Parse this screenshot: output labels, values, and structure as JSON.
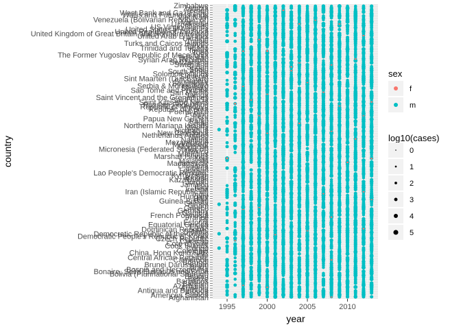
{
  "chart_data": {
    "type": "scatter",
    "title": "",
    "xlabel": "year",
    "ylabel": "country",
    "x": [
      1995,
      1996,
      1997,
      1998,
      1999,
      2000,
      2001,
      2002,
      2003,
      2004,
      2005,
      2006,
      2007,
      2008,
      2009,
      2010,
      2011,
      2012,
      2013
    ],
    "x_ticks": [
      1995,
      2000,
      2005,
      2010
    ],
    "xlim": [
      1993.2,
      2013.8
    ],
    "grid": true,
    "country_labels": [
      "Afghanistan",
      "American Samoa",
      "Angola",
      "Antigua and Barbuda",
      "Armenia",
      "Azerbaijan",
      "Bahrain",
      "Barbados",
      "Belize",
      "Bhutan",
      "Bolivia (Plurinational State of)",
      "Bonaire, Saint Eustatius and Saba",
      "Bosnia and Herzegovina",
      "Brazil",
      "Brunei Darussalam",
      "Burundi",
      "Cameroon",
      "Central African Republic",
      "Chile",
      "China, Hong Kong SAR",
      "Colombia",
      "Congo",
      "Cook Islands",
      "Cote d'Ivoire",
      "Curacao",
      "Czech Republic",
      "Democratic People's Republic of Korea",
      "Democratic Republic of the Congo",
      "Djibouti",
      "Dominican Republic",
      "Egypt",
      "Equatorial Guinea",
      "Estonia",
      "Fiji",
      "France",
      "French Polynesia",
      "Gambia",
      "Germany",
      "Greece",
      "Guam",
      "Guinea",
      "Guinea-Bissau",
      "Haiti",
      "Hungary",
      "India",
      "Iran (Islamic Republic of)",
      "Ireland",
      "Italy",
      "Jamaica",
      "Jordan",
      "Kazakhstan",
      "Kiribati",
      "Kyrgyzstan",
      "Lao People's Democratic Republic",
      "Lebanon",
      "Liberia",
      "Lithuania",
      "Madagascar",
      "Malaysia",
      "Mali",
      "Marshall Islands",
      "Mauritius",
      "Mexico",
      "Micronesia (Federated States of)",
      "Mongolia",
      "Montserrat",
      "Mozambique",
      "Namibia",
      "Nepal",
      "Netherlands Antilles",
      "New Caledonia",
      "Nicaragua",
      "Nigeria",
      "Northern Mariana Islands",
      "Oman",
      "Palau",
      "Papua New Guinea",
      "Peru",
      "Poland",
      "Puerto Rico",
      "Republic of Korea",
      "Republic of Moldova",
      "Russian Federation",
      "Saint Kitts and Nevis",
      "Saint Lucia",
      "Saint Vincent and the Grenadines",
      "Samoa",
      "San Marino",
      "Sao Tome and Principe",
      "Senegal",
      "Serbia & Montenegro",
      "Seychelles",
      "Singapore",
      "Sint Maarten (Dutch part)",
      "Slovenia",
      "Solomon Islands",
      "South Africa",
      "Spain",
      "Sudan",
      "Swaziland",
      "Switzerland",
      "Syrian Arab Republic",
      "Tajikistan",
      "The Former Yugoslav Republic of Macedonia",
      "Togo",
      "Tonga",
      "Trinidad and Tobago",
      "Turkey",
      "Turks and Caicos Islands",
      "Tuvalu",
      "Ukraine",
      "United Arab Emirates",
      "United Kingdom of Great Britain and Northern Ireland",
      "United Republic of Tanzania",
      "United States of America",
      "US Virgin Islands",
      "Uzbekistan",
      "Vanuatu",
      "Venezuela (Bolivarian Republic of)",
      "Viet Nam",
      "Wallis and Futuna Islands",
      "West Bank and Gaza Strip",
      "Yemen",
      "Zambia",
      "Zimbabwe"
    ],
    "series": [
      {
        "name": "f",
        "color": "#f8766d"
      },
      {
        "name": "m",
        "color": "#00bfc4"
      }
    ],
    "size_legend": {
      "title": "log10(cases)",
      "values": [
        "0",
        "1",
        "2",
        "3",
        "4",
        "5"
      ]
    },
    "color_legend": {
      "title": "sex",
      "position": "right"
    }
  }
}
